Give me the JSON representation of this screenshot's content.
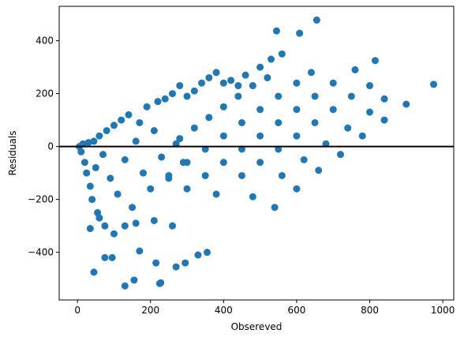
{
  "chart_data": {
    "type": "scatter",
    "xlabel": "Obsereved",
    "ylabel": "Residuals",
    "x": [
      5,
      10,
      15,
      20,
      25,
      30,
      35,
      40,
      45,
      50,
      55,
      60,
      70,
      80,
      90,
      100,
      110,
      120,
      130,
      140,
      150,
      160,
      170,
      180,
      190,
      200,
      210,
      220,
      230,
      240,
      250,
      260,
      270,
      280,
      290,
      300,
      320,
      340,
      360,
      380,
      400,
      420,
      440,
      460,
      500,
      530,
      560,
      75,
      35,
      130,
      160,
      210,
      60,
      100,
      260,
      280,
      320,
      360,
      400,
      440,
      480,
      520,
      250,
      300,
      350,
      400,
      450,
      500,
      550,
      600,
      640,
      300,
      350,
      400,
      450,
      500,
      550,
      600,
      650,
      700,
      760,
      815,
      380,
      450,
      500,
      550,
      600,
      650,
      700,
      750,
      800,
      480,
      560,
      620,
      680,
      740,
      800,
      840,
      540,
      600,
      660,
      720,
      780,
      840,
      900,
      975,
      655,
      545,
      608,
      130,
      228,
      225,
      155,
      45,
      270,
      295,
      215,
      330,
      355,
      95,
      75,
      170
    ],
    "values": [
      0,
      -20,
      10,
      -60,
      -100,
      15,
      -150,
      -200,
      20,
      -80,
      -250,
      40,
      -30,
      60,
      -120,
      80,
      -180,
      100,
      -50,
      120,
      -230,
      20,
      90,
      -100,
      150,
      -160,
      60,
      170,
      -40,
      180,
      -120,
      200,
      10,
      230,
      -60,
      190,
      210,
      240,
      260,
      280,
      240,
      250,
      230,
      270,
      300,
      330,
      350,
      -300,
      -310,
      -300,
      -290,
      -280,
      -270,
      -330,
      -300,
      30,
      70,
      110,
      150,
      190,
      230,
      260,
      -110,
      -60,
      -10,
      40,
      90,
      140,
      190,
      240,
      280,
      -160,
      -110,
      -60,
      -10,
      40,
      90,
      140,
      190,
      240,
      290,
      325,
      -180,
      -110,
      -60,
      -10,
      40,
      90,
      140,
      190,
      230,
      -190,
      -110,
      -50,
      10,
      70,
      130,
      180,
      -230,
      -160,
      -90,
      -30,
      40,
      100,
      160,
      235,
      478,
      437,
      428,
      -527,
      -515,
      -518,
      -505,
      -475,
      -455,
      -440,
      -440,
      -410,
      -400,
      -420,
      -420,
      -395
    ],
    "color": "#1f77b4",
    "hline": 0,
    "hline_color": "#000000",
    "xlim": [
      -50,
      1030
    ],
    "ylim": [
      -580,
      530
    ],
    "xticks": [
      0,
      200,
      400,
      600,
      800,
      1000
    ],
    "yticks": [
      {
        "value": -400,
        "label": "−400"
      },
      {
        "value": -200,
        "label": "−200"
      },
      0,
      200,
      400
    ]
  }
}
